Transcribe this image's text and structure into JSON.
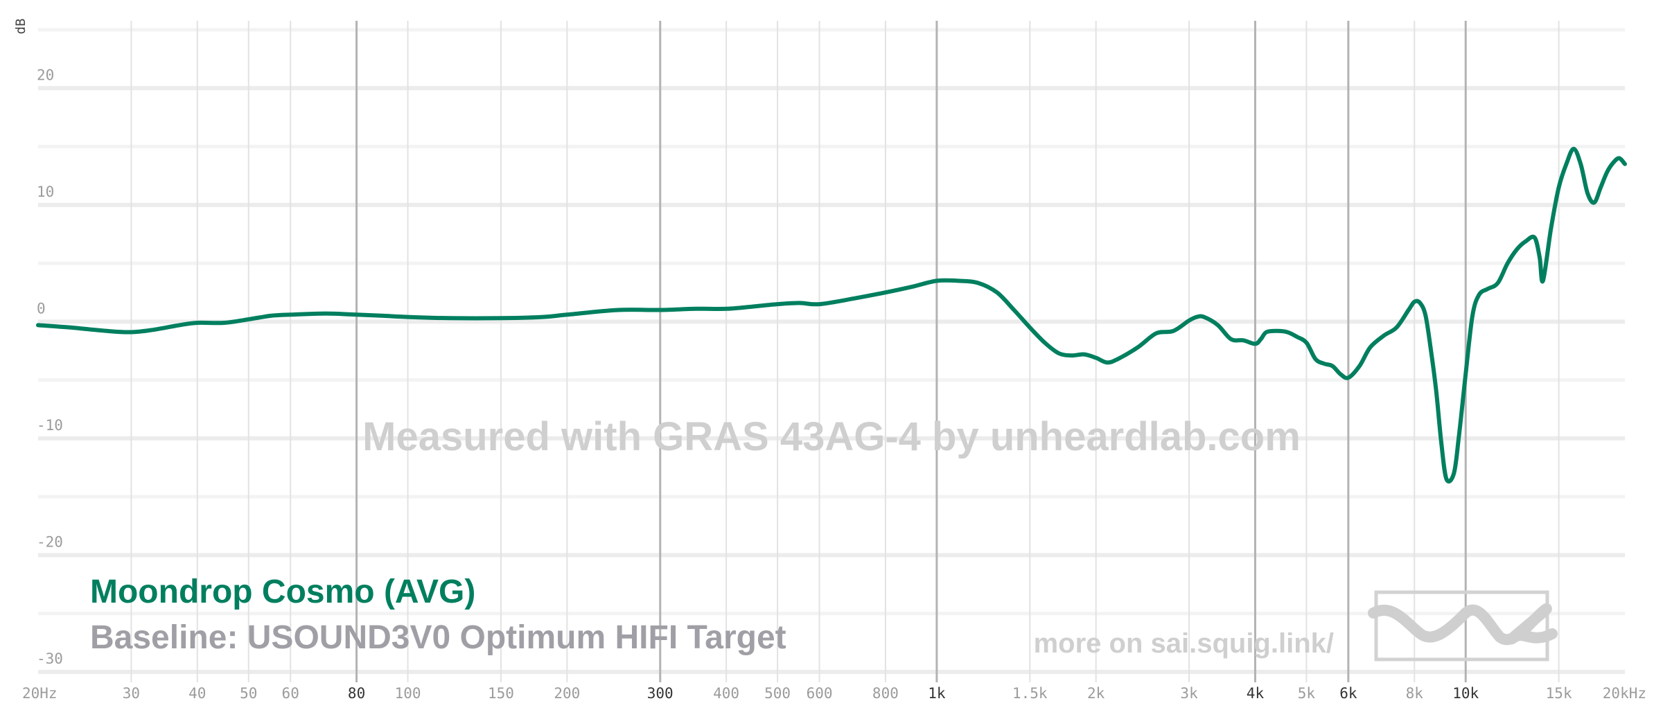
{
  "chart_data": {
    "type": "line",
    "x_scale": "log",
    "xlim": [
      20,
      20000
    ],
    "ylim": [
      -30,
      25
    ],
    "ylabel": "dB",
    "grid": true,
    "x_ticks": [
      {
        "value": 20,
        "label": "20Hz",
        "major": false
      },
      {
        "value": 30,
        "label": "30",
        "major": false
      },
      {
        "value": 40,
        "label": "40",
        "major": false
      },
      {
        "value": 50,
        "label": "50",
        "major": false
      },
      {
        "value": 60,
        "label": "60",
        "major": false
      },
      {
        "value": 80,
        "label": "80",
        "major": true
      },
      {
        "value": 100,
        "label": "100",
        "major": false
      },
      {
        "value": 150,
        "label": "150",
        "major": false
      },
      {
        "value": 200,
        "label": "200",
        "major": false
      },
      {
        "value": 300,
        "label": "300",
        "major": true
      },
      {
        "value": 400,
        "label": "400",
        "major": false
      },
      {
        "value": 500,
        "label": "500",
        "major": false
      },
      {
        "value": 600,
        "label": "600",
        "major": false
      },
      {
        "value": 800,
        "label": "800",
        "major": false
      },
      {
        "value": 1000,
        "label": "1k",
        "major": true
      },
      {
        "value": 1500,
        "label": "1.5k",
        "major": false
      },
      {
        "value": 2000,
        "label": "2k",
        "major": false
      },
      {
        "value": 3000,
        "label": "3k",
        "major": false
      },
      {
        "value": 4000,
        "label": "4k",
        "major": true
      },
      {
        "value": 5000,
        "label": "5k",
        "major": false
      },
      {
        "value": 6000,
        "label": "6k",
        "major": true
      },
      {
        "value": 8000,
        "label": "8k",
        "major": false
      },
      {
        "value": 10000,
        "label": "10k",
        "major": true
      },
      {
        "value": 15000,
        "label": "15k",
        "major": false
      },
      {
        "value": 20000,
        "label": "20kHz",
        "major": false
      }
    ],
    "y_ticks": [
      {
        "value": 20,
        "label": "20"
      },
      {
        "value": 10,
        "label": "10"
      },
      {
        "value": 0,
        "label": "0"
      },
      {
        "value": -10,
        "label": "-10"
      },
      {
        "value": -20,
        "label": "-20"
      },
      {
        "value": -30,
        "label": "-30"
      }
    ],
    "series": [
      {
        "name": "Moondrop Cosmo (AVG)",
        "color": "#007f5f",
        "x": [
          20,
          23,
          27,
          30,
          33,
          37,
          40,
          45,
          50,
          55,
          60,
          70,
          80,
          90,
          100,
          120,
          150,
          180,
          200,
          250,
          300,
          350,
          400,
          450,
          500,
          550,
          600,
          700,
          800,
          900,
          1000,
          1100,
          1200,
          1300,
          1400,
          1500,
          1600,
          1700,
          1800,
          1900,
          2000,
          2100,
          2200,
          2400,
          2600,
          2800,
          3000,
          3100,
          3200,
          3400,
          3600,
          3800,
          4000,
          4100,
          4200,
          4400,
          4600,
          4800,
          5000,
          5200,
          5400,
          5600,
          5800,
          6000,
          6300,
          6600,
          7000,
          7400,
          7800,
          8000,
          8200,
          8400,
          8600,
          8800,
          9000,
          9200,
          9500,
          9700,
          10000,
          10300,
          10600,
          11000,
          11500,
          12000,
          12500,
          13000,
          13500,
          13800,
          14000,
          14500,
          15000,
          15500,
          16000,
          16500,
          17000,
          17500,
          18000,
          18500,
          19000,
          19500,
          20000
        ],
        "y": [
          -0.3,
          -0.5,
          -0.8,
          -0.9,
          -0.7,
          -0.3,
          -0.1,
          -0.1,
          0.2,
          0.5,
          0.6,
          0.7,
          0.6,
          0.5,
          0.4,
          0.3,
          0.3,
          0.4,
          0.6,
          1.0,
          1.0,
          1.1,
          1.1,
          1.3,
          1.5,
          1.6,
          1.5,
          2.0,
          2.5,
          3.0,
          3.5,
          3.5,
          3.3,
          2.5,
          1.0,
          -0.5,
          -1.8,
          -2.7,
          -2.9,
          -2.8,
          -3.1,
          -3.5,
          -3.2,
          -2.2,
          -1.0,
          -0.8,
          0.1,
          0.4,
          0.4,
          -0.3,
          -1.5,
          -1.6,
          -1.9,
          -1.5,
          -0.9,
          -0.8,
          -0.9,
          -1.3,
          -1.8,
          -3.2,
          -3.6,
          -3.8,
          -4.5,
          -4.8,
          -3.8,
          -2.2,
          -1.2,
          -0.5,
          1.0,
          1.7,
          1.6,
          0.5,
          -2.5,
          -6.0,
          -10.5,
          -13.5,
          -13.0,
          -10.0,
          -4.5,
          0.5,
          2.3,
          2.8,
          3.3,
          5.0,
          6.2,
          6.9,
          7.2,
          5.5,
          3.5,
          8.0,
          11.5,
          13.5,
          14.8,
          13.5,
          11.0,
          10.2,
          11.5,
          12.8,
          13.6,
          14.0,
          13.5
        ]
      }
    ]
  },
  "legend": {
    "title": "Moondrop Cosmo (AVG)",
    "baseline": "Baseline: USOUND3V0 Optimum HIFI Target",
    "title_color": "#007f5f",
    "baseline_color": "#a09fa5"
  },
  "watermark": "Measured with GRAS 43AG-4 by unheardlab.com",
  "promo": "more on sai.squig.link/",
  "logo_icon": "squiglink-logo-icon"
}
